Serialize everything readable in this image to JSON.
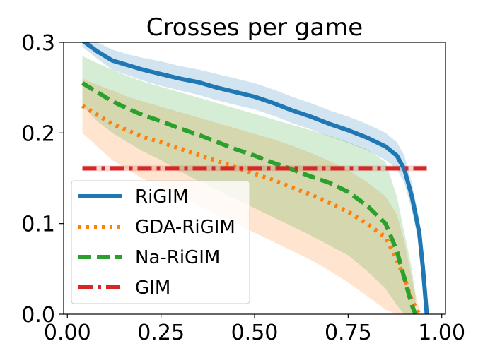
{
  "chart_data": {
    "type": "line",
    "title": "Crosses per game",
    "xlabel": "",
    "ylabel": "",
    "xlim": [
      -0.01,
      1.01
    ],
    "ylim": [
      0.0,
      0.3
    ],
    "xticks": [
      "0.00",
      "0.25",
      "0.50",
      "0.75",
      "1.00"
    ],
    "xtick_values": [
      0.0,
      0.25,
      0.5,
      0.75,
      1.0
    ],
    "yticks": [
      "0.0",
      "0.1",
      "0.2",
      "0.3"
    ],
    "ytick_values": [
      0.0,
      0.1,
      0.2,
      0.3
    ],
    "grid": false,
    "legend_position": "lower-left",
    "series": [
      {
        "name": "RiGIM",
        "color": "#1f77b4",
        "style": "solid",
        "x": [
          0.04,
          0.08,
          0.12,
          0.16,
          0.2,
          0.25,
          0.3,
          0.35,
          0.4,
          0.45,
          0.5,
          0.55,
          0.6,
          0.65,
          0.7,
          0.75,
          0.8,
          0.85,
          0.88,
          0.9,
          0.92,
          0.94,
          0.95,
          0.96
        ],
        "y": [
          0.302,
          0.29,
          0.28,
          0.275,
          0.27,
          0.265,
          0.26,
          0.256,
          0.25,
          0.245,
          0.24,
          0.233,
          0.225,
          0.218,
          0.21,
          0.203,
          0.195,
          0.185,
          0.175,
          0.16,
          0.13,
          0.09,
          0.05,
          0.0
        ],
        "band_lower": [
          0.295,
          0.282,
          0.27,
          0.264,
          0.258,
          0.252,
          0.247,
          0.242,
          0.236,
          0.231,
          0.226,
          0.219,
          0.211,
          0.204,
          0.196,
          0.189,
          0.181,
          0.17,
          0.16,
          0.145,
          0.115,
          0.075,
          0.035,
          0.0
        ],
        "band_upper": [
          0.31,
          0.3,
          0.292,
          0.287,
          0.283,
          0.279,
          0.274,
          0.27,
          0.265,
          0.26,
          0.255,
          0.248,
          0.24,
          0.233,
          0.225,
          0.218,
          0.21,
          0.2,
          0.19,
          0.175,
          0.145,
          0.105,
          0.065,
          0.005
        ]
      },
      {
        "name": "GDA-RiGIM",
        "color": "#ff7f0e",
        "style": "dotted",
        "x": [
          0.04,
          0.08,
          0.12,
          0.16,
          0.2,
          0.25,
          0.3,
          0.35,
          0.4,
          0.45,
          0.5,
          0.55,
          0.6,
          0.65,
          0.7,
          0.75,
          0.8,
          0.85,
          0.88,
          0.9,
          0.92,
          0.94
        ],
        "y": [
          0.23,
          0.22,
          0.21,
          0.203,
          0.196,
          0.19,
          0.183,
          0.176,
          0.169,
          0.162,
          0.155,
          0.148,
          0.14,
          0.132,
          0.123,
          0.113,
          0.1,
          0.085,
          0.06,
          0.04,
          0.015,
          0.0
        ],
        "band_lower": [
          0.2,
          0.185,
          0.17,
          0.16,
          0.15,
          0.14,
          0.13,
          0.12,
          0.11,
          0.1,
          0.09,
          0.08,
          0.07,
          0.06,
          0.048,
          0.035,
          0.02,
          0.005,
          0.0,
          0.0,
          0.0,
          0.0
        ],
        "band_upper": [
          0.26,
          0.253,
          0.247,
          0.24,
          0.235,
          0.229,
          0.223,
          0.217,
          0.211,
          0.205,
          0.199,
          0.193,
          0.186,
          0.178,
          0.169,
          0.159,
          0.146,
          0.13,
          0.11,
          0.08,
          0.04,
          0.005
        ]
      },
      {
        "name": "Na-RiGIM",
        "color": "#2ca02c",
        "style": "dashed",
        "x": [
          0.04,
          0.08,
          0.12,
          0.16,
          0.2,
          0.25,
          0.3,
          0.35,
          0.4,
          0.45,
          0.5,
          0.55,
          0.6,
          0.65,
          0.7,
          0.75,
          0.8,
          0.85,
          0.88,
          0.9,
          0.92,
          0.93
        ],
        "y": [
          0.255,
          0.245,
          0.235,
          0.227,
          0.22,
          0.213,
          0.205,
          0.198,
          0.19,
          0.182,
          0.175,
          0.167,
          0.16,
          0.152,
          0.145,
          0.135,
          0.12,
          0.1,
          0.07,
          0.04,
          0.01,
          0.0
        ],
        "band_lower": [
          0.23,
          0.213,
          0.2,
          0.19,
          0.18,
          0.17,
          0.158,
          0.147,
          0.137,
          0.127,
          0.117,
          0.107,
          0.097,
          0.087,
          0.076,
          0.065,
          0.048,
          0.028,
          0.01,
          0.0,
          0.0,
          0.0
        ],
        "band_upper": [
          0.285,
          0.277,
          0.27,
          0.263,
          0.257,
          0.251,
          0.245,
          0.239,
          0.233,
          0.227,
          0.221,
          0.215,
          0.209,
          0.203,
          0.197,
          0.19,
          0.182,
          0.168,
          0.13,
          0.09,
          0.05,
          0.02
        ]
      },
      {
        "name": "GIM",
        "color": "#d62728",
        "style": "dashdot",
        "x": [
          0.04,
          0.96
        ],
        "y": [
          0.161,
          0.161
        ],
        "band_lower": [
          0.158,
          0.158
        ],
        "band_upper": [
          0.164,
          0.164
        ]
      }
    ]
  }
}
